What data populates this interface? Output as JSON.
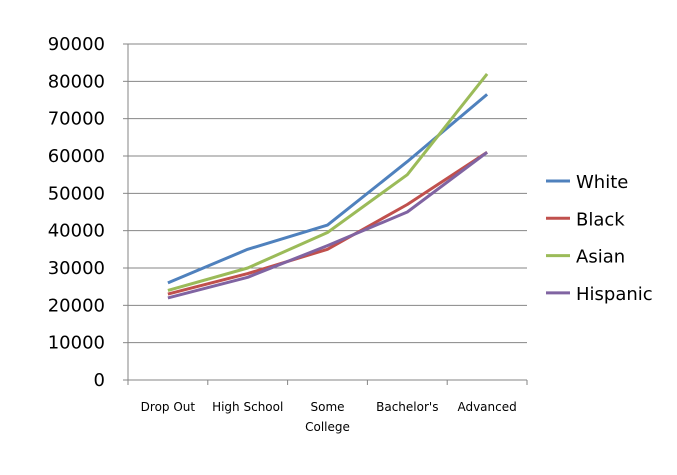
{
  "chart_data": {
    "type": "line",
    "categories": [
      "Drop Out",
      "High School",
      "Some College",
      "Bachelor's",
      "Advanced"
    ],
    "category_lines": [
      [
        "Drop Out"
      ],
      [
        "High School"
      ],
      [
        "Some",
        "College"
      ],
      [
        "Bachelor's"
      ],
      [
        "Advanced"
      ]
    ],
    "series": [
      {
        "name": "White",
        "values": [
          26000,
          35000,
          41500,
          58500,
          76500
        ],
        "color": "#4F81BD"
      },
      {
        "name": "Black",
        "values": [
          23000,
          28500,
          35000,
          47000,
          61000
        ],
        "color": "#C0504D"
      },
      {
        "name": "Asian",
        "values": [
          24000,
          30000,
          39500,
          55000,
          82000
        ],
        "color": "#9BBB59"
      },
      {
        "name": "Hispanic",
        "values": [
          22000,
          27500,
          36000,
          45000,
          61000
        ],
        "color": "#8064A2"
      }
    ],
    "y_ticks": [
      0,
      10000,
      20000,
      30000,
      40000,
      50000,
      60000,
      70000,
      80000,
      90000
    ],
    "ylim": [
      0,
      90000
    ],
    "grid": true,
    "legend": "right"
  }
}
